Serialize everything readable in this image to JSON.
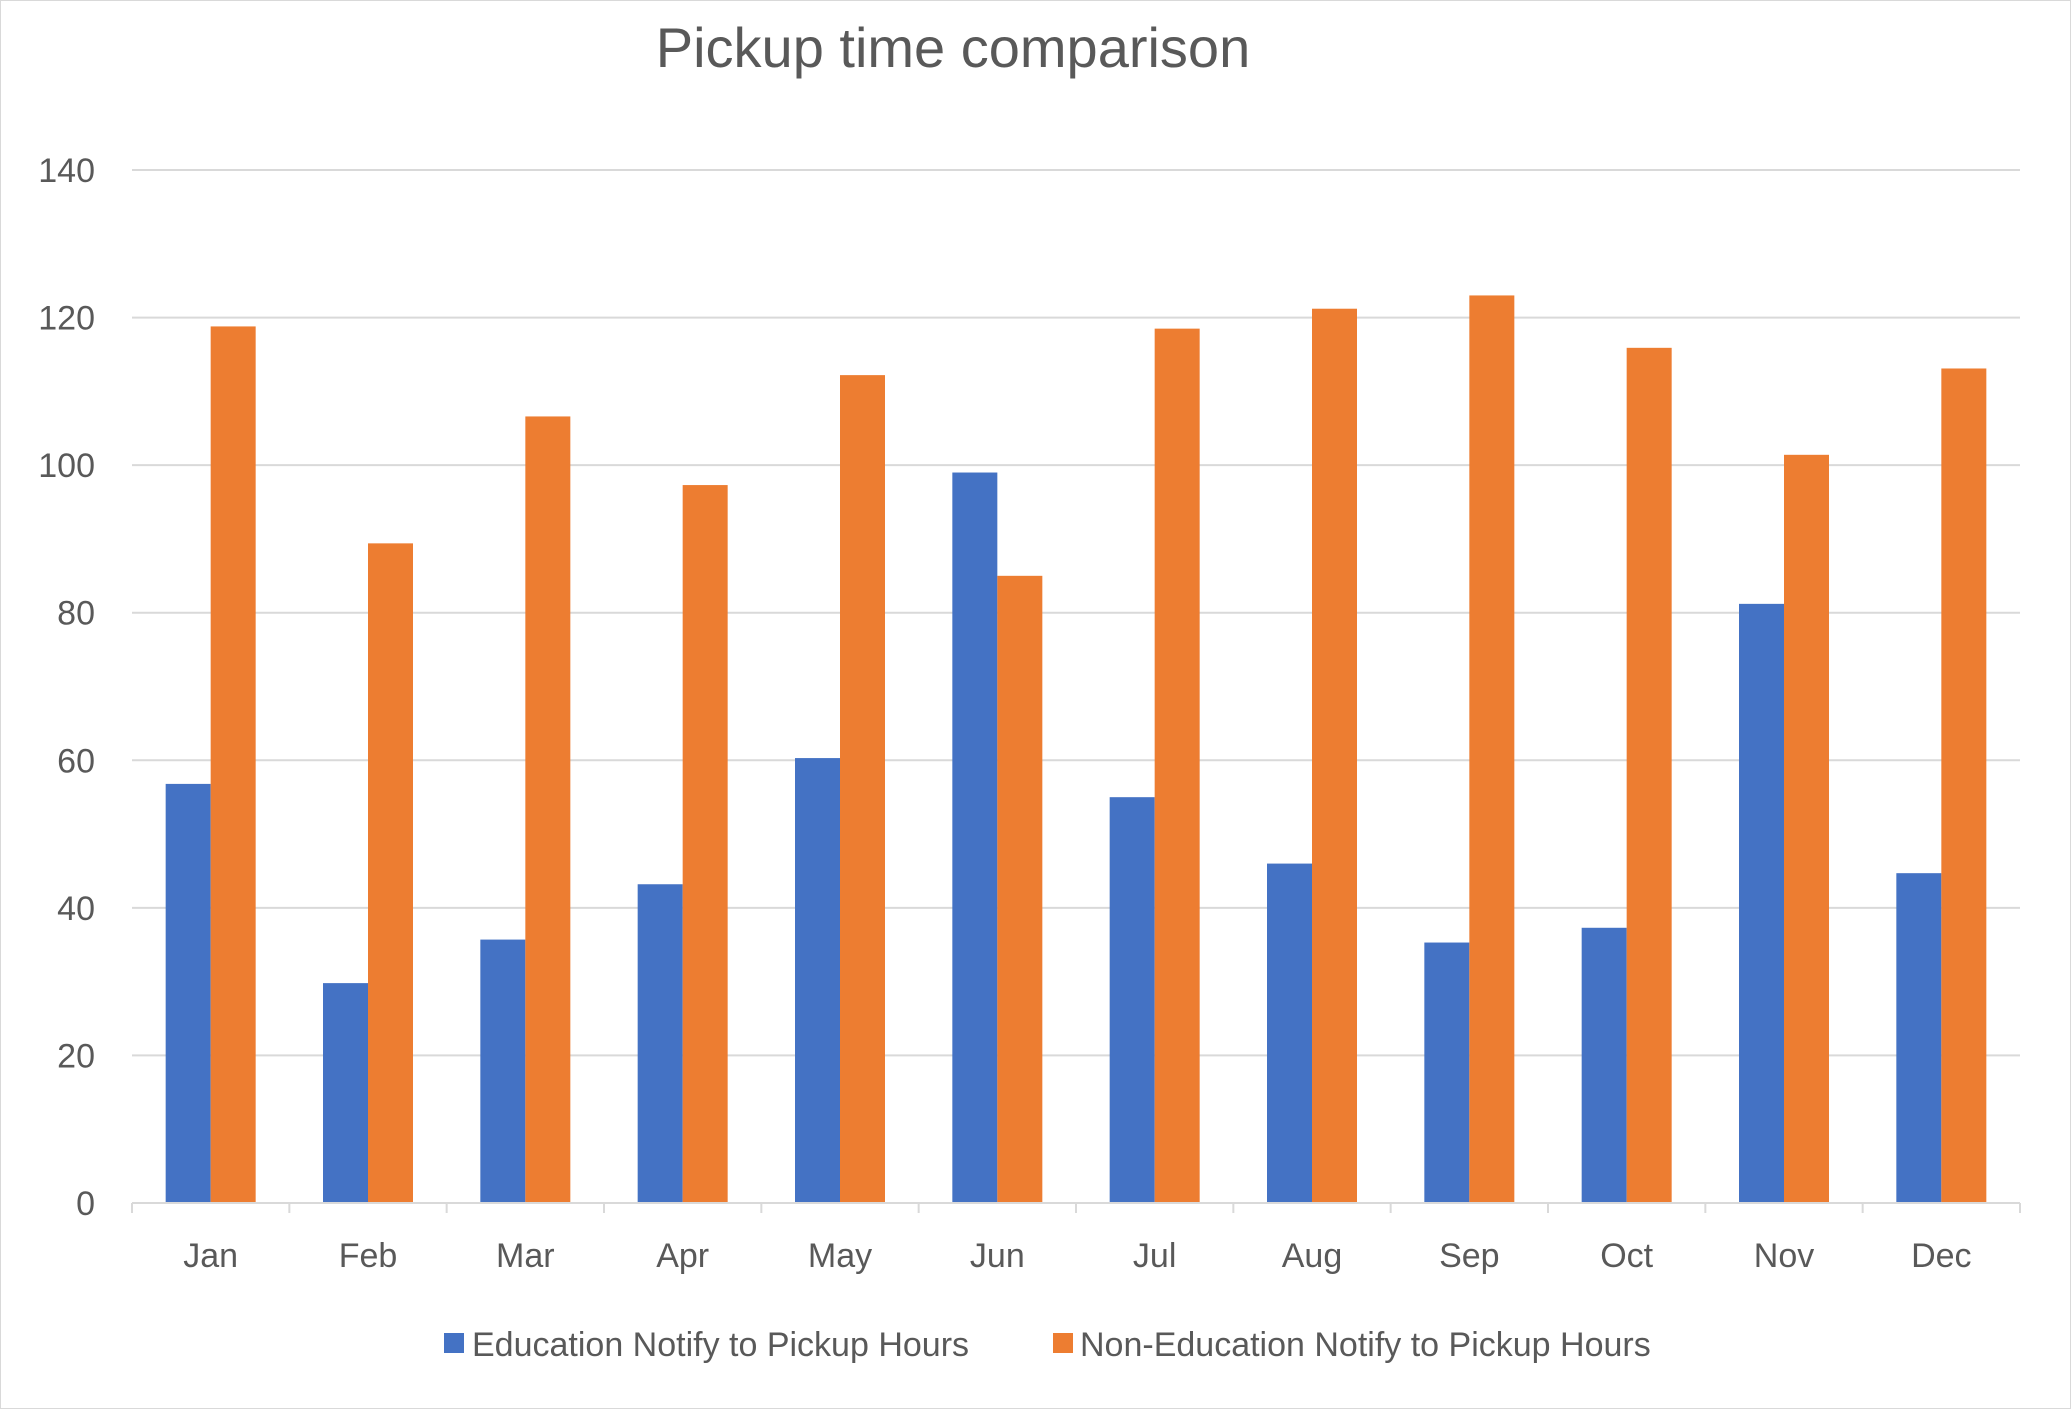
{
  "chart_data": {
    "type": "bar",
    "title": "Pickup time comparison",
    "xlabel": "",
    "ylabel": "",
    "categories": [
      "Jan",
      "Feb",
      "Mar",
      "Apr",
      "May",
      "Jun",
      "Jul",
      "Aug",
      "Sep",
      "Oct",
      "Nov",
      "Dec"
    ],
    "series": [
      {
        "name": "Education Notify to Pickup Hours",
        "color": "#4472C4",
        "values": [
          56.8,
          29.8,
          35.7,
          43.2,
          60.3,
          99.0,
          55.0,
          46.0,
          35.3,
          37.3,
          81.2,
          44.7
        ]
      },
      {
        "name": "Non-Education Notify to Pickup Hours",
        "color": "#ED7D31",
        "values": [
          118.8,
          89.4,
          106.6,
          97.3,
          112.2,
          85.0,
          118.5,
          121.2,
          123.0,
          115.9,
          101.4,
          113.1
        ]
      }
    ],
    "ylim": [
      0,
      140
    ],
    "yticks": [
      0,
      20,
      40,
      60,
      80,
      100,
      120,
      140
    ],
    "grid": true,
    "legend": "bottom"
  }
}
